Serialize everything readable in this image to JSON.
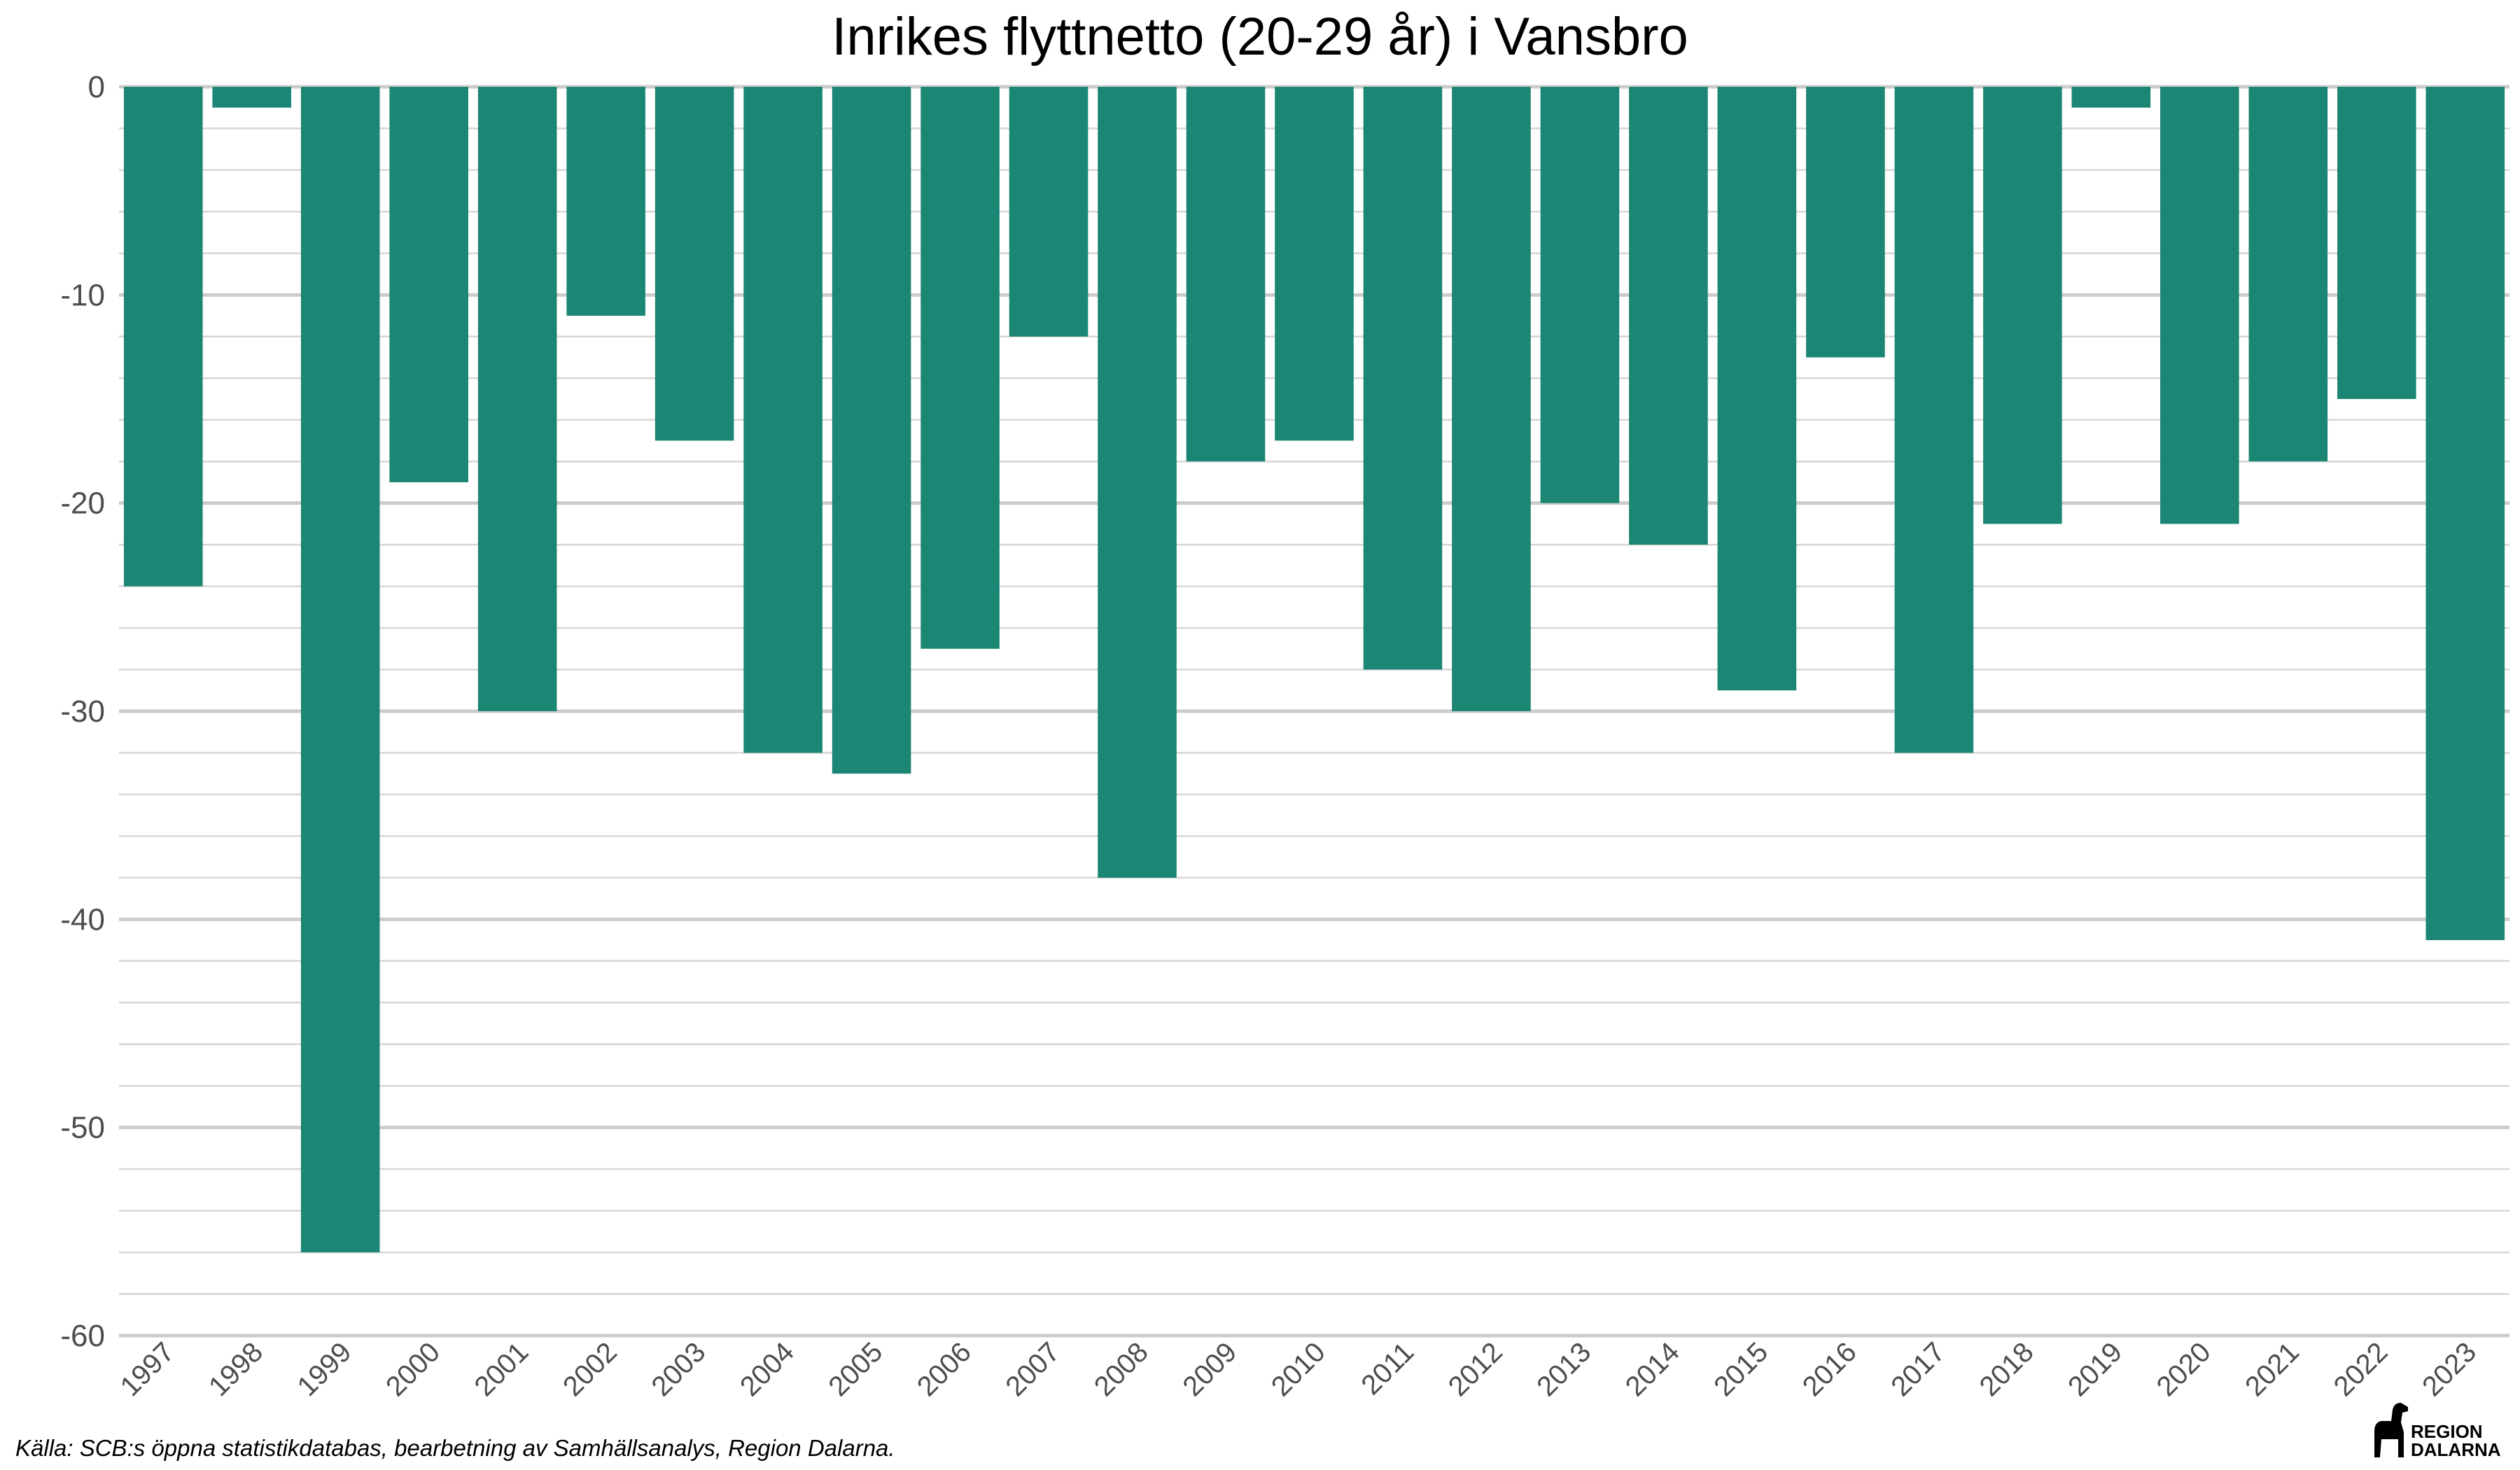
{
  "chart_data": {
    "type": "bar",
    "title": "Inrikes flyttnetto (20-29 år) i Vansbro",
    "xlabel": "",
    "ylabel": "",
    "categories": [
      "1997",
      "1998",
      "1999",
      "2000",
      "2001",
      "2002",
      "2003",
      "2004",
      "2005",
      "2006",
      "2007",
      "2008",
      "2009",
      "2010",
      "2011",
      "2012",
      "2013",
      "2014",
      "2015",
      "2016",
      "2017",
      "2018",
      "2019",
      "2020",
      "2021",
      "2022",
      "2023"
    ],
    "values": [
      -24,
      -1,
      -56,
      -19,
      -30,
      -11,
      -17,
      -32,
      -33,
      -27,
      -12,
      -38,
      -18,
      -17,
      -28,
      -30,
      -20,
      -22,
      -29,
      -13,
      -32,
      -21,
      -1,
      -21,
      -18,
      -15,
      -41
    ],
    "ylim": [
      -60,
      0
    ],
    "yticks": [
      0,
      -10,
      -20,
      -30,
      -40,
      -50,
      -60
    ],
    "ytick_labels": [
      "0",
      "-10",
      "-20",
      "-30",
      "-40",
      "-50",
      "-60"
    ],
    "minor_grid_step": 2,
    "grid": true,
    "legend": "none",
    "bar_color": "#1a8673"
  },
  "caption": "Källa: SCB:s öppna statistikdatabas, bearbetning av Samhällsanalys, Region Dalarna.",
  "logo": {
    "line1": "REGION",
    "line2": "DALARNA"
  },
  "colors": {
    "bar": "#1a8673",
    "grid_major": "#cccccc",
    "grid_minor": "#d6d6d6",
    "tick_text": "#4d4d4d"
  }
}
